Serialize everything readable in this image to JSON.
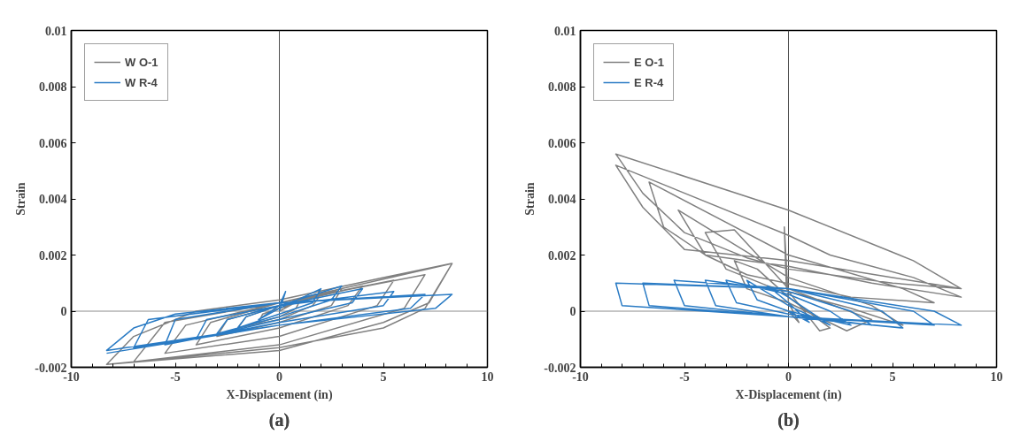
{
  "chart_data": [
    {
      "type": "line",
      "title": "(a)",
      "xlabel": "X-Displacement (in)",
      "ylabel": "Strain",
      "xlim": [
        -10,
        10
      ],
      "xticks": [
        -10,
        -5,
        0,
        5,
        10
      ],
      "ylim": [
        -0.002,
        0.01
      ],
      "yticks": [
        -0.002,
        0,
        0.002,
        0.004,
        0.006,
        0.008,
        0.01
      ],
      "grid": false,
      "legend": "top left",
      "line_style": "solid",
      "marker": "none",
      "ref_lines": [
        {
          "axis": "x",
          "value": 0,
          "color": "#505050"
        },
        {
          "axis": "y",
          "value": 0,
          "color": "#8c8c8c"
        }
      ],
      "series": [
        {
          "name": "W O-1",
          "color": "#808080",
          "x": [
            0,
            1,
            0.8,
            0,
            -1,
            -0.8,
            0,
            2,
            1.6,
            0,
            -2,
            -1.6,
            0,
            3,
            2.5,
            0,
            -3,
            -2.5,
            0,
            4,
            3.3,
            0,
            -4,
            -3.3,
            0,
            5.5,
            4.7,
            0,
            -5.5,
            -4.5,
            0,
            7,
            6,
            0,
            -7,
            -5.5,
            0,
            8.3,
            7,
            5,
            0,
            -8.3,
            -7,
            -4,
            0,
            5,
            8.3,
            7.2,
            5,
            0,
            -8.3
          ],
          "values": [
            0,
            0.0004,
            0.0001,
            -0.0002,
            -0.0004,
            -0.0001,
            0.0001,
            0.0006,
            0.0002,
            -0.0003,
            -0.0006,
            -0.0002,
            0.0002,
            0.0008,
            0.0002,
            -0.0004,
            -0.0009,
            -0.0003,
            0.0002,
            0.0009,
            0.0002,
            -0.0006,
            -0.0012,
            -0.0004,
            0.0003,
            0.0011,
            0.0002,
            -0.0009,
            -0.0015,
            -0.0005,
            0.0003,
            0.0013,
            0.0001,
            -0.0012,
            -0.0018,
            -0.0004,
            0.0003,
            0.0017,
            0.0001,
            -0.0006,
            -0.0013,
            -0.0019,
            -0.0009,
            0,
            0.0004,
            0.0012,
            0.0017,
            0.0003,
            -0.0004,
            -0.0014,
            -0.0019
          ]
        },
        {
          "name": "W R-4",
          "color": "#2a7bc4",
          "x": [
            0,
            0.3,
            0,
            -1,
            0,
            2,
            1.6,
            0,
            -2,
            -1.6,
            0,
            3,
            2.5,
            0,
            -3,
            -2.5,
            0,
            4,
            3.5,
            0,
            -4,
            -3.5,
            0,
            5.5,
            5,
            0,
            -5.5,
            -5,
            0,
            7,
            6.3,
            0,
            -7,
            -6.3,
            0,
            8.3,
            7.5,
            0,
            -8.3,
            -7,
            -5,
            0,
            8.3,
            7.5,
            0,
            -8.3
          ],
          "values": [
            0,
            0.0007,
            0.0002,
            -0.0003,
            0.0001,
            0.0008,
            0.0003,
            -0.0001,
            -0.0006,
            -0.0002,
            0.0002,
            0.0009,
            0.0004,
            -0.0002,
            -0.0008,
            -0.0003,
            0.0002,
            0.0008,
            0.0003,
            -0.0003,
            -0.001,
            -0.0003,
            0.0002,
            0.0007,
            0.0002,
            -0.0004,
            -0.0012,
            -0.0003,
            0.0003,
            0.0006,
            0.0001,
            -0.0005,
            -0.0013,
            -0.0003,
            0.0003,
            0.0006,
            0.0001,
            -0.0005,
            -0.0014,
            -0.0006,
            -0.0001,
            0.0003,
            0.0006,
            0.0001,
            -0.0005,
            -0.0015
          ]
        }
      ]
    },
    {
      "type": "line",
      "title": "(b)",
      "xlabel": "X-Displacement (in)",
      "ylabel": "Strain",
      "xlim": [
        -10,
        10
      ],
      "xticks": [
        -10,
        -5,
        0,
        5,
        10
      ],
      "ylim": [
        -0.002,
        0.01
      ],
      "yticks": [
        -0.002,
        0,
        0.002,
        0.004,
        0.006,
        0.008,
        0.01
      ],
      "grid": false,
      "legend": "top left",
      "line_style": "solid",
      "marker": "none",
      "ref_lines": [
        {
          "axis": "x",
          "value": 0,
          "color": "#505050"
        },
        {
          "axis": "y",
          "value": 0,
          "color": "#8c8c8c"
        }
      ],
      "series": [
        {
          "name": "E O-1",
          "color": "#808080",
          "x": [
            0,
            0.5,
            0,
            -0.2,
            -0.1,
            1.5,
            2,
            0,
            -1.5,
            -2.6,
            -2,
            0,
            2.8,
            4,
            0,
            -2.6,
            -4,
            -3,
            -1,
            3,
            5.5,
            4,
            0,
            -5.3,
            -4,
            -2,
            3,
            7,
            5.5,
            0,
            -6.7,
            -6,
            -4,
            0,
            4,
            8.3,
            6,
            2,
            0,
            -8.3,
            -7,
            -5,
            0,
            5,
            8.3,
            6,
            0,
            -8.3,
            -7,
            -5,
            -2,
            0,
            5,
            8.3
          ],
          "values": [
            0,
            -0.0004,
            0.0003,
            0.003,
            0.0008,
            -0.0007,
            -0.0006,
            0.0005,
            0.0015,
            0.0018,
            0.0008,
            0.0003,
            -0.0007,
            -0.0003,
            0.0008,
            0.0029,
            0.0028,
            0.0015,
            0.0009,
            0.0001,
            -0.0005,
            0.0002,
            0.0012,
            0.0036,
            0.002,
            0.0013,
            0.0005,
            0.0003,
            0.0008,
            0.002,
            0.0046,
            0.003,
            0.002,
            0.0016,
            0.001,
            0.0005,
            0.0012,
            0.002,
            0.0027,
            0.0052,
            0.0037,
            0.0022,
            0.0018,
            0.0012,
            0.0008,
            0.0018,
            0.0036,
            0.0056,
            0.0042,
            0.0028,
            0.0019,
            0.0015,
            0.001,
            0.0008
          ]
        },
        {
          "name": "E R-4",
          "color": "#2a7bc4",
          "x": [
            0,
            1,
            0,
            -1,
            0,
            2,
            0,
            -2,
            -1.5,
            0,
            3,
            2,
            0,
            -3,
            -2.5,
            0,
            4,
            3,
            0,
            -4,
            -3.5,
            0,
            5.5,
            4.5,
            0,
            -5.5,
            -5,
            0,
            7,
            6,
            0,
            -7,
            -6.7,
            0,
            8.3,
            7,
            0,
            -8.3,
            -8,
            0,
            8.3
          ],
          "values": [
            0,
            -0.0004,
            0.0003,
            0.0009,
            0.0005,
            -0.0005,
            0.0002,
            0.0011,
            0.0004,
            0,
            -0.0005,
            0,
            0.0006,
            0.0011,
            0.0003,
            -0.0001,
            -0.0005,
            0,
            0.0007,
            0.0011,
            0.0002,
            -0.0002,
            -0.0006,
            0,
            0.0008,
            0.0011,
            0.0002,
            -0.0002,
            -0.0005,
            0,
            0.0008,
            0.001,
            0.0002,
            -0.0002,
            -0.0005,
            0,
            0.0008,
            0.001,
            0.0002,
            -0.0002,
            -0.0005
          ]
        }
      ]
    }
  ]
}
